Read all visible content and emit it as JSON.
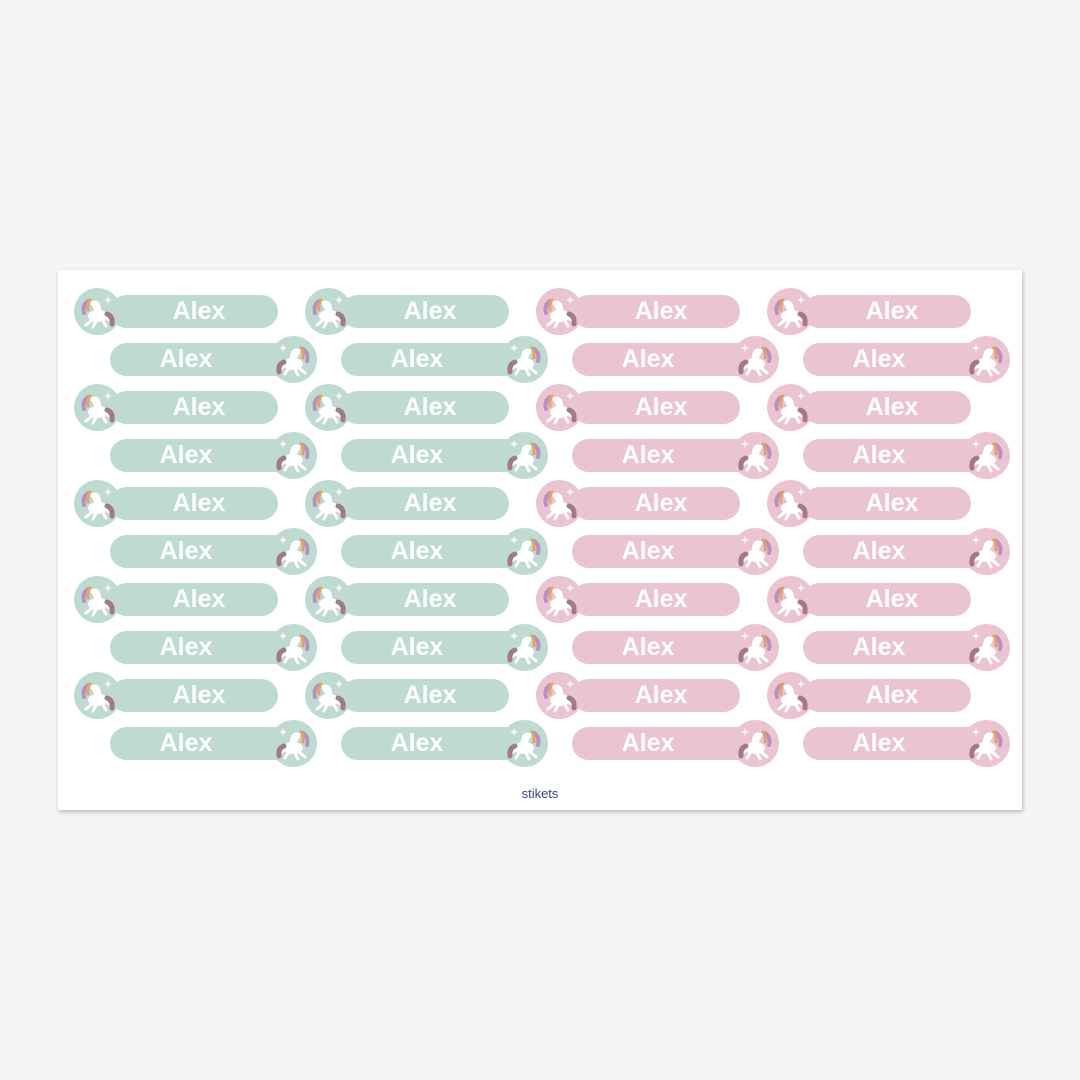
{
  "brand": "stikets",
  "colors": {
    "mint": "#bfdad1",
    "pink": "#ebc4d2",
    "background": "#f5f5f5",
    "brand_text": "#3a3f8e"
  },
  "icon": "unicorn-icon",
  "columns": [
    {
      "color": "mint",
      "labels": [
        "Alex",
        "Alex",
        "Alex",
        "Alex",
        "Alex",
        "Alex",
        "Alex",
        "Alex",
        "Alex",
        "Alex"
      ]
    },
    {
      "color": "mint",
      "labels": [
        "Alex",
        "Alex",
        "Alex",
        "Alex",
        "Alex",
        "Alex",
        "Alex",
        "Alex",
        "Alex",
        "Alex"
      ]
    },
    {
      "color": "pink",
      "labels": [
        "Alex",
        "Alex",
        "Alex",
        "Alex",
        "Alex",
        "Alex",
        "Alex",
        "Alex",
        "Alex",
        "Alex"
      ]
    },
    {
      "color": "pink",
      "labels": [
        "Alex",
        "Alex",
        "Alex",
        "Alex",
        "Alex",
        "Alex",
        "Alex",
        "Alex",
        "Alex",
        "Alex"
      ]
    }
  ]
}
